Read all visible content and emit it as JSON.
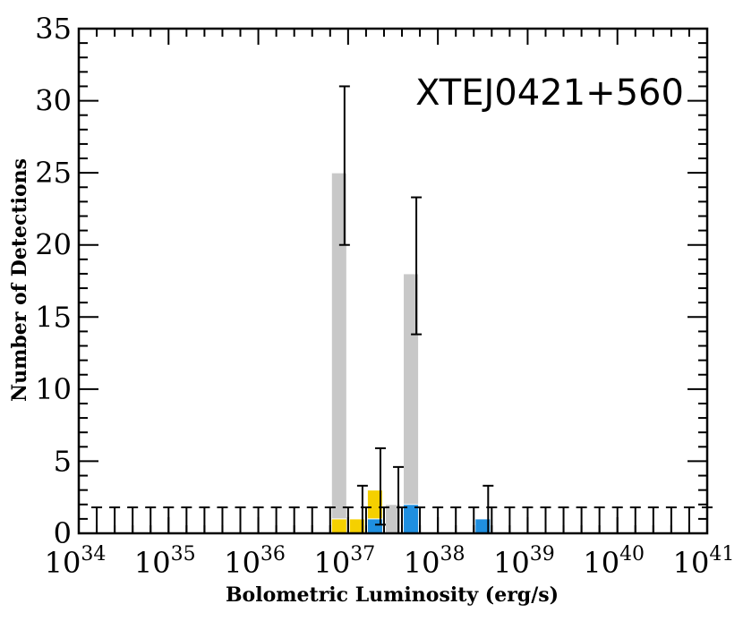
{
  "chart_data": {
    "type": "bar",
    "title": "XTEJ0421+560",
    "xlabel": "Bolometric Luminosity (erg/s)",
    "ylabel": "Number of Detections",
    "x_scale": "log",
    "xlim": [
      1e+34,
      1e+41
    ],
    "ylim": [
      0,
      35
    ],
    "x_ticks": [
      {
        "base": "10",
        "exp": "34"
      },
      {
        "base": "10",
        "exp": "35"
      },
      {
        "base": "10",
        "exp": "36"
      },
      {
        "base": "10",
        "exp": "37"
      },
      {
        "base": "10",
        "exp": "38"
      },
      {
        "base": "10",
        "exp": "39"
      },
      {
        "base": "10",
        "exp": "40"
      },
      {
        "base": "10",
        "exp": "41"
      }
    ],
    "y_ticks": [
      "0",
      "5",
      "10",
      "15",
      "20",
      "25",
      "30",
      "35"
    ],
    "bin_width_dex": 0.2,
    "grid": false,
    "colors": {
      "gray": "#c8c8c8",
      "yellow": "#f5d000",
      "blue": "#1f8fe0",
      "errorbar": "#000000",
      "axis": "#000000"
    },
    "series": [
      {
        "color": "gray",
        "bins": [
          {
            "log_lmin": 36.8,
            "log_lmax": 37.0,
            "value": 25
          },
          {
            "log_lmin": 37.6,
            "log_lmax": 37.8,
            "value": 18
          },
          {
            "log_lmin": 37.4,
            "log_lmax": 37.6,
            "value": 2
          }
        ]
      },
      {
        "color": "yellow",
        "bins": [
          {
            "log_lmin": 36.8,
            "log_lmax": 37.0,
            "value": 1
          },
          {
            "log_lmin": 37.0,
            "log_lmax": 37.2,
            "value": 1
          },
          {
            "log_lmin": 37.2,
            "log_lmax": 37.4,
            "value": 3
          }
        ]
      },
      {
        "color": "blue",
        "bins": [
          {
            "log_lmin": 37.2,
            "log_lmax": 37.4,
            "value": 1
          },
          {
            "log_lmin": 37.6,
            "log_lmax": 37.8,
            "value": 2
          },
          {
            "log_lmin": 38.4,
            "log_lmax": 38.6,
            "value": 1
          }
        ]
      }
    ],
    "error_bars": [
      {
        "log_l": 37.0,
        "center": 25,
        "low": 20,
        "high": 31
      },
      {
        "log_l": 37.8,
        "center": 18,
        "low": 13.8,
        "high": 23.3
      },
      {
        "log_l": 37.2,
        "center": 1,
        "low": 0,
        "high": 3.3
      },
      {
        "log_l": 37.4,
        "center": 3,
        "low": 0.6,
        "high": 5.9
      },
      {
        "log_l": 37.6,
        "center": 2,
        "low": 0,
        "high": 4.6
      },
      {
        "log_l": 38.6,
        "center": 1,
        "low": 0,
        "high": 3.3
      }
    ],
    "upper_limit_bars": {
      "value": 1.8,
      "log_l": [
        34.2,
        34.4,
        34.6,
        34.8,
        35.0,
        35.2,
        35.4,
        35.6,
        35.8,
        36.0,
        36.2,
        36.4,
        36.6,
        36.8,
        37.0,
        37.2,
        37.4,
        37.6,
        37.8,
        38.0,
        38.2,
        38.4,
        38.6,
        38.8,
        39.0,
        39.2,
        39.4,
        39.6,
        39.8,
        40.0,
        40.2,
        40.4,
        40.6,
        40.8,
        41.0
      ]
    }
  }
}
